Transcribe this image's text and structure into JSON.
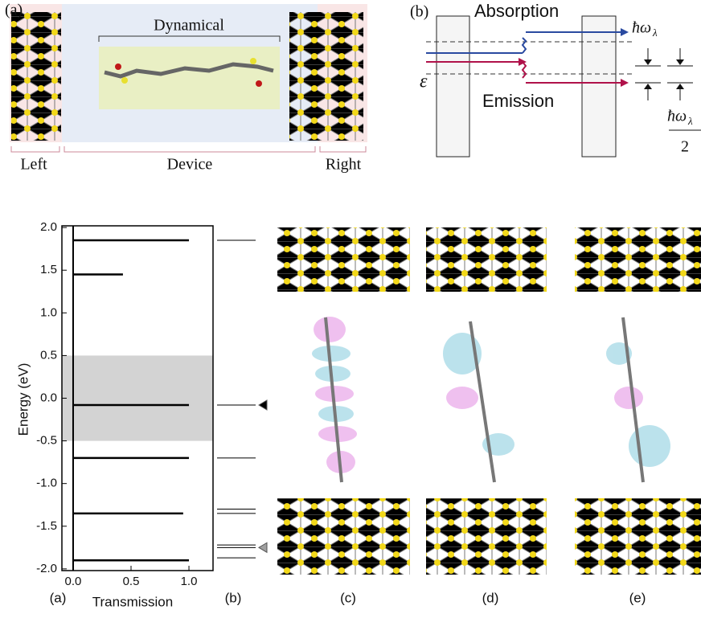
{
  "panel_top_a": {
    "label": "(a)",
    "region": "Dynamical",
    "left": "Left",
    "device": "Device",
    "right": "Right"
  },
  "panel_top_b": {
    "label": "(b)",
    "absorption": "Absorption",
    "emission": "Emission",
    "epsilon": "ε",
    "hbar_omega": "ħω",
    "subscript": "λ",
    "denominator": "2"
  },
  "chart_data": {
    "type": "spike",
    "xlabel": "Transmission",
    "ylabel": "Energy (eV)",
    "xlim": [
      -0.097,
      1.208
    ],
    "ylim": [
      -2.02,
      2.02
    ],
    "xticks": [
      {
        "value": 0,
        "label": "0.0"
      },
      {
        "value": 0.5,
        "label": "0.5"
      },
      {
        "value": 1,
        "label": "1.0"
      }
    ],
    "yticks": [
      {
        "value": -2,
        "label": "-2.0"
      },
      {
        "value": -1.5,
        "label": "-1.5"
      },
      {
        "value": -1,
        "label": "-1.0"
      },
      {
        "value": -0.5,
        "label": "-0.5"
      },
      {
        "value": 0,
        "label": "0.0"
      },
      {
        "value": 0.5,
        "label": "0.5"
      },
      {
        "value": 1,
        "label": "1.0"
      },
      {
        "value": 1.5,
        "label": "1.5"
      },
      {
        "value": 2,
        "label": "2.0"
      }
    ],
    "shaded_range": [
      -0.5,
      0.5
    ],
    "energies": [
      1.85,
      1.45,
      -0.08,
      -0.7,
      -1.35,
      -1.9
    ],
    "transmission": [
      1.0,
      0.43,
      1.0,
      1.0,
      0.95,
      1.0
    ],
    "color": "#000000",
    "levels": [
      1.85,
      -0.08,
      -0.7,
      -1.3,
      -1.35,
      -1.72,
      -1.75,
      -1.87
    ],
    "markers": [
      {
        "energy": -0.08,
        "color": "#000000"
      },
      {
        "energy": -1.75,
        "color": "#a0a0a0"
      }
    ]
  },
  "panel_labels": [
    "(a)",
    "(b)",
    "(c)",
    "(d)",
    "(e)"
  ]
}
